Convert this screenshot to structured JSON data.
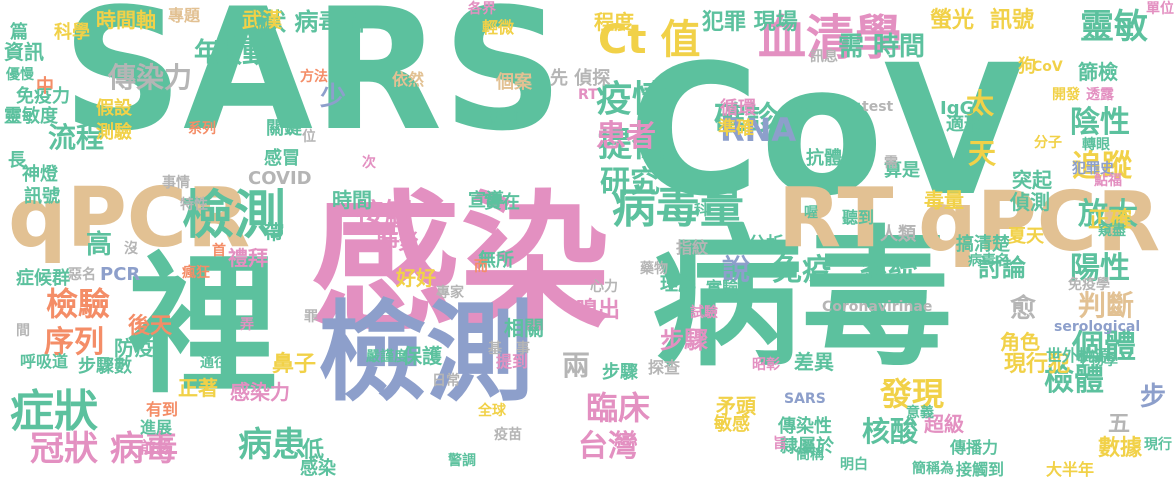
{
  "palette": {
    "green": "#5cc19e",
    "blue": "#8d9fcb",
    "pink": "#e390c1",
    "tan": "#e2c193",
    "lime": "#a4d355",
    "yellow": "#f1d148",
    "orange": "#f48d67",
    "grey": "#b5b5b5"
  },
  "words": [
    {
      "text": "SARS",
      "color": "green"
    },
    {
      "text": "CoV",
      "color": "green"
    },
    {
      "text": "感染",
      "color": "pink"
    },
    {
      "text": "病毒",
      "color": "green"
    },
    {
      "text": "裡",
      "color": "green"
    },
    {
      "text": "檢測",
      "color": "blue"
    },
    {
      "text": "qPCR",
      "color": "tan"
    },
    {
      "text": "RT",
      "color": "tan"
    },
    {
      "text": "qPCR",
      "color": "tan"
    },
    {
      "text": "檢測",
      "color": "green"
    },
    {
      "text": "病毒量",
      "color": "green"
    },
    {
      "text": "症狀",
      "color": "green"
    },
    {
      "text": "冠狀 病毒",
      "color": "pink"
    },
    {
      "text": "病患",
      "color": "green"
    },
    {
      "text": "血清學",
      "color": "pink"
    },
    {
      "text": "疫情",
      "color": "green"
    },
    {
      "text": "Ct 值",
      "color": "yellow"
    },
    {
      "text": "確診",
      "color": "green"
    },
    {
      "text": "陰性",
      "color": "green"
    },
    {
      "text": "追蹤",
      "color": "yellow"
    },
    {
      "text": "放大",
      "color": "green"
    },
    {
      "text": "陽性",
      "color": "green"
    },
    {
      "text": "判斷",
      "color": "tan"
    },
    {
      "text": "個體",
      "color": "green"
    },
    {
      "text": "檢體",
      "color": "green"
    },
    {
      "text": "核酸",
      "color": "green"
    },
    {
      "text": "發現",
      "color": "yellow"
    },
    {
      "text": "台灣",
      "color": "pink"
    },
    {
      "text": "臨床",
      "color": "pink"
    },
    {
      "text": "檢驗",
      "color": "orange"
    },
    {
      "text": "序列",
      "color": "orange"
    },
    {
      "text": "流程",
      "color": "green"
    },
    {
      "text": "啟動",
      "color": "green"
    },
    {
      "text": "傳染力",
      "color": "grey"
    },
    {
      "text": "提供",
      "color": "green"
    },
    {
      "text": "研究",
      "color": "green"
    },
    {
      "text": "患者",
      "color": "pink"
    },
    {
      "text": "RNA",
      "color": "blue"
    },
    {
      "text": "免疫",
      "color": "green"
    },
    {
      "text": "系統",
      "color": "green"
    },
    {
      "text": "說",
      "color": "blue"
    },
    {
      "text": "接觸",
      "color": "pink"
    },
    {
      "text": "靈敏",
      "color": "green"
    },
    {
      "text": "螢光",
      "color": "yellow"
    },
    {
      "text": "訊號",
      "color": "yellow"
    },
    {
      "text": "需 時間",
      "color": "green"
    },
    {
      "text": "冠狀 病毒科",
      "color": "green"
    },
    {
      "text": "犯罪 現場",
      "color": "green"
    },
    {
      "text": "時間軸",
      "color": "yellow"
    },
    {
      "text": "武漢",
      "color": "yellow"
    },
    {
      "text": "程度",
      "color": "yellow"
    },
    {
      "text": "討論",
      "color": "green"
    },
    {
      "text": "愈",
      "color": "grey"
    },
    {
      "text": "天",
      "color": "yellow"
    },
    {
      "text": "太",
      "color": "yellow"
    },
    {
      "text": "高",
      "color": "green"
    },
    {
      "text": "年",
      "color": "green"
    },
    {
      "text": "少",
      "color": "blue"
    },
    {
      "text": "兩",
      "color": "grey"
    },
    {
      "text": "步驟",
      "color": "pink"
    },
    {
      "text": "步",
      "color": "blue"
    },
    {
      "text": "五",
      "color": "grey"
    },
    {
      "text": "數據",
      "color": "yellow"
    },
    {
      "text": "角色",
      "color": "yellow"
    },
    {
      "text": "差異",
      "color": "green"
    },
    {
      "text": "現行犯",
      "color": "yellow"
    },
    {
      "text": "後天",
      "color": "orange"
    },
    {
      "text": "防疫",
      "color": "green"
    },
    {
      "text": "鼻子",
      "color": "yellow"
    },
    {
      "text": "嗅出",
      "color": "pink"
    },
    {
      "text": "正確",
      "color": "yellow"
    },
    {
      "text": "偵測",
      "color": "green"
    },
    {
      "text": "突起",
      "color": "green"
    },
    {
      "text": "篩檢",
      "color": "green"
    },
    {
      "text": "時間",
      "color": "green"
    },
    {
      "text": "肺炎",
      "color": "pink"
    },
    {
      "text": "好好",
      "color": "yellow"
    },
    {
      "text": "感冒",
      "color": "green"
    },
    {
      "text": "COVID",
      "color": "grey"
    },
    {
      "text": "正著",
      "color": "yellow"
    },
    {
      "text": "感染力",
      "color": "pink"
    },
    {
      "text": "保護",
      "color": "green"
    },
    {
      "text": "相關",
      "color": "green"
    },
    {
      "text": "禮拜",
      "color": "pink"
    },
    {
      "text": "無所",
      "color": "green"
    },
    {
      "text": "宣導",
      "color": "green"
    },
    {
      "text": "實在",
      "color": "green"
    },
    {
      "text": "循環",
      "color": "pink"
    },
    {
      "text": "準確",
      "color": "yellow"
    },
    {
      "text": "抗體",
      "color": "green"
    },
    {
      "text": "算是",
      "color": "green"
    },
    {
      "text": "IgG",
      "color": "green"
    },
    {
      "text": "資訊",
      "color": "green"
    },
    {
      "text": "免疫力",
      "color": "green"
    },
    {
      "text": "靈敏度",
      "color": "green"
    },
    {
      "text": "假設",
      "color": "yellow"
    },
    {
      "text": "測驗",
      "color": "yellow"
    },
    {
      "text": "神燈",
      "color": "green"
    },
    {
      "text": "訊號",
      "color": "green"
    },
    {
      "text": "先 偵探",
      "color": "grey"
    },
    {
      "text": "個案",
      "color": "tan"
    },
    {
      "text": "讀取",
      "color": "green"
    },
    {
      "text": "關鍵",
      "color": "green"
    },
    {
      "text": "症候群",
      "color": "green"
    },
    {
      "text": "PCR",
      "color": "blue"
    },
    {
      "text": "呼吸道",
      "color": "green"
    },
    {
      "text": "步驟數",
      "color": "green"
    },
    {
      "text": "隸屬於",
      "color": "green"
    },
    {
      "text": "傳染性",
      "color": "green"
    },
    {
      "text": "傳播力",
      "color": "green"
    },
    {
      "text": "接觸到",
      "color": "green"
    },
    {
      "text": "大半年",
      "color": "yellow"
    },
    {
      "text": "超級",
      "color": "pink"
    },
    {
      "text": "矛頭",
      "color": "yellow"
    },
    {
      "text": "敏感",
      "color": "yellow"
    },
    {
      "text": "分析",
      "color": "green"
    },
    {
      "text": "實驗",
      "color": "green"
    },
    {
      "text": "理解",
      "color": "green"
    },
    {
      "text": "步驟",
      "color": "green"
    },
    {
      "text": "指紋",
      "color": "grey"
    },
    {
      "text": "人類",
      "color": "grey"
    },
    {
      "text": "正",
      "color": "pink"
    },
    {
      "text": "帶",
      "color": "green"
    },
    {
      "text": "毒量",
      "color": "yellow"
    },
    {
      "text": "適形",
      "color": "green"
    },
    {
      "text": "篇",
      "color": "green"
    },
    {
      "text": "科學",
      "color": "yellow"
    },
    {
      "text": "專題",
      "color": "tan"
    },
    {
      "text": "輕微",
      "color": "yellow"
    },
    {
      "text": "狗",
      "color": "yellow"
    },
    {
      "text": "中",
      "color": "orange"
    },
    {
      "text": "長",
      "color": "green"
    },
    {
      "text": "感染",
      "color": "green"
    },
    {
      "text": "低",
      "color": "green"
    },
    {
      "text": "依然",
      "color": "tan"
    },
    {
      "text": "有到",
      "color": "orange"
    },
    {
      "text": "進展",
      "color": "green"
    },
    {
      "text": "前緣",
      "color": "pink"
    },
    {
      "text": "Coronavirinae",
      "color": "grey"
    },
    {
      "text": "serological",
      "color": "blue"
    },
    {
      "text": "SARS",
      "color": "blue"
    },
    {
      "text": "免疫學",
      "color": "grey"
    },
    {
      "text": "病毒名",
      "color": "green"
    },
    {
      "text": "test",
      "color": "grey"
    },
    {
      "text": "RT",
      "color": "pink"
    },
    {
      "text": "CoV",
      "color": "yellow"
    },
    {
      "text": "分子",
      "color": "yellow"
    },
    {
      "text": "透露",
      "color": "pink"
    },
    {
      "text": "轉眼",
      "color": "green"
    },
    {
      "text": "犯罪史",
      "color": "blue"
    },
    {
      "text": "鮎福",
      "color": "pink"
    },
    {
      "text": "窺盡",
      "color": "green"
    },
    {
      "text": "單位",
      "color": "pink"
    },
    {
      "text": "夏天",
      "color": "yellow"
    },
    {
      "text": "搞清楚",
      "color": "green"
    },
    {
      "text": "喔",
      "color": "green"
    },
    {
      "text": "科",
      "color": "green"
    },
    {
      "text": "聽到",
      "color": "green"
    },
    {
      "text": "探查",
      "color": "grey"
    },
    {
      "text": "次",
      "color": "pink"
    },
    {
      "text": "位",
      "color": "grey"
    },
    {
      "text": "各界",
      "color": "pink"
    },
    {
      "text": "開發",
      "color": "yellow"
    },
    {
      "text": "提到",
      "color": "pink"
    },
    {
      "text": "簡稱",
      "color": "green"
    },
    {
      "text": "明白",
      "color": "green"
    },
    {
      "text": "簡稱為",
      "color": "green"
    },
    {
      "text": "世外桃源",
      "color": "green"
    },
    {
      "text": "生物學",
      "color": "green"
    },
    {
      "text": "意義",
      "color": "green"
    },
    {
      "text": "現行",
      "color": "green"
    },
    {
      "text": "抓",
      "color": "green"
    },
    {
      "text": "昭彰",
      "color": "pink"
    },
    {
      "text": "試驗",
      "color": "pink"
    },
    {
      "text": "心力",
      "color": "grey"
    },
    {
      "text": "而",
      "color": "orange"
    },
    {
      "text": "藥物",
      "color": "grey"
    },
    {
      "text": "事",
      "color": "grey"
    },
    {
      "text": "基",
      "color": "grey"
    },
    {
      "text": "日常",
      "color": "grey"
    },
    {
      "text": "全球",
      "color": "yellow"
    },
    {
      "text": "警調",
      "color": "green"
    },
    {
      "text": "疫苗",
      "color": "grey"
    },
    {
      "text": "專家",
      "color": "grey"
    },
    {
      "text": "嚴謹度",
      "color": "green"
    },
    {
      "text": "弄",
      "color": "pink"
    },
    {
      "text": "通往",
      "color": "green"
    },
    {
      "text": "罪",
      "color": "grey"
    },
    {
      "text": "瘋狂",
      "color": "orange"
    },
    {
      "text": "首",
      "color": "orange"
    },
    {
      "text": "惡名",
      "color": "grey"
    },
    {
      "text": "沒",
      "color": "grey"
    },
    {
      "text": "間",
      "color": "grey"
    },
    {
      "text": "事情",
      "color": "grey"
    },
    {
      "text": "特性",
      "color": "grey"
    },
    {
      "text": "系列",
      "color": "orange"
    },
    {
      "text": "方法",
      "color": "orange"
    },
    {
      "text": "優慢",
      "color": "green"
    },
    {
      "text": "建",
      "color": "green"
    },
    {
      "text": "旨",
      "color": "pink"
    },
    {
      "text": "訊息",
      "color": "grey"
    },
    {
      "text": "犯",
      "color": "green"
    },
    {
      "text": "需",
      "color": "grey"
    }
  ]
}
